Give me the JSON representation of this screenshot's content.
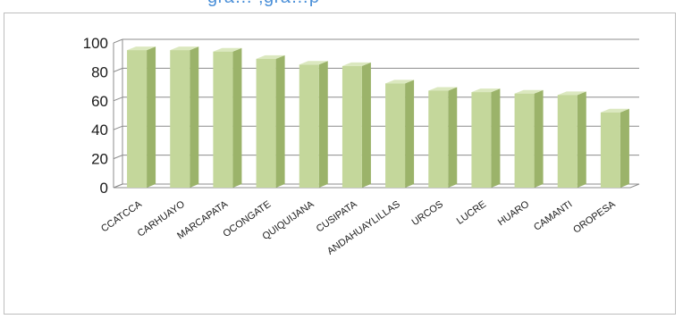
{
  "title_fragment": "gra… ;gra…p",
  "chart_data": {
    "type": "bar",
    "title": "",
    "xlabel": "",
    "ylabel": "",
    "ylim": [
      0,
      100
    ],
    "yticks": [
      0,
      20,
      40,
      60,
      80,
      100
    ],
    "grid": true,
    "legend": "none",
    "three_d": true,
    "categories": [
      "CCATCCA",
      "CARHUAYO",
      "MARCAPATA",
      "OCONGATE",
      "QUIQUIJANA",
      "CUSIPATA",
      "ANDAHUAYLILLAS",
      "URCOS",
      "LUCRE",
      "HUARO",
      "CAMANTI",
      "OROPESA"
    ],
    "values": [
      95,
      95,
      94,
      89,
      85,
      84,
      72,
      67,
      66,
      65,
      64,
      52
    ]
  },
  "colors": {
    "bar_front": "#c4d79b",
    "bar_side": "#9bb36a",
    "bar_top": "#dbe8bf",
    "grid": "#8c8c8c",
    "axis_text": "#1a1a1a",
    "title": "#4a8fd8"
  }
}
